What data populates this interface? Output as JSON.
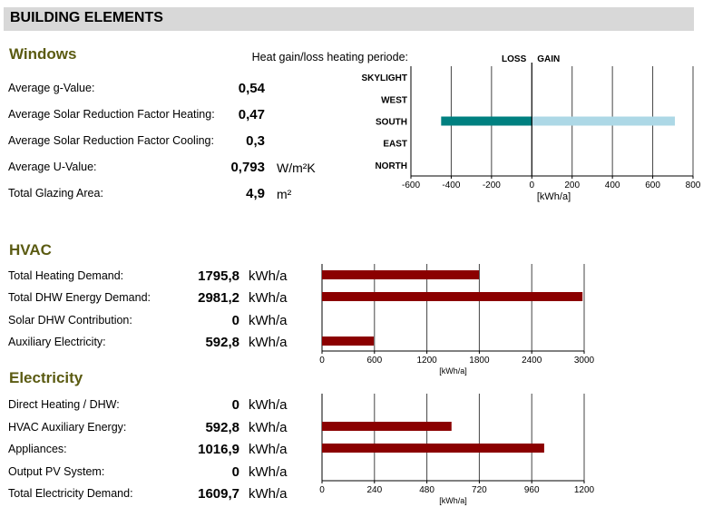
{
  "header": {
    "title": "BUILDING ELEMENTS"
  },
  "windows": {
    "title": "Windows",
    "rows": [
      {
        "label": "Average g-Value:",
        "value": "0,54",
        "unit": ""
      },
      {
        "label": "Average Solar Reduction Factor Heating:",
        "value": "0,47",
        "unit": ""
      },
      {
        "label": "Average Solar Reduction Factor Cooling:",
        "value": "0,3",
        "unit": ""
      },
      {
        "label": "Average U-Value:",
        "value": "0,793",
        "unit": "W/m²K"
      },
      {
        "label": "Total Glazing Area:",
        "value": "4,9",
        "unit": "m²"
      }
    ]
  },
  "hvac": {
    "title": "HVAC",
    "rows": [
      {
        "label": "Total Heating  Demand:",
        "value": "1795,8",
        "unit": "kWh/a"
      },
      {
        "label": "Total DHW Energy Demand:",
        "value": "2981,2",
        "unit": "kWh/a"
      },
      {
        "label": "Solar DHW Contribution:",
        "value": "0",
        "unit": "kWh/a"
      },
      {
        "label": "Auxiliary Electricity:",
        "value": "592,8",
        "unit": "kWh/a"
      }
    ]
  },
  "electricity": {
    "title": "Electricity",
    "rows": [
      {
        "label": "Direct Heating / DHW:",
        "value": "0",
        "unit": "kWh/a"
      },
      {
        "label": "HVAC Auxiliary Energy:",
        "value": "592,8",
        "unit": "kWh/a"
      },
      {
        "label": "Appliances:",
        "value": "1016,9",
        "unit": "kWh/a"
      },
      {
        "label": "Output PV System:",
        "value": "0",
        "unit": "kWh/a"
      },
      {
        "label": "Total Electricity Demand:",
        "value": "1609,7",
        "unit": "kWh/a"
      }
    ]
  },
  "chart_data": [
    {
      "type": "bar",
      "orientation": "horizontal",
      "title": "Heat gain/loss heating periode:",
      "legend_labels": [
        "LOSS",
        "GAIN"
      ],
      "categories": [
        "SKYLIGHT",
        "WEST",
        "SOUTH",
        "EAST",
        "NORTH"
      ],
      "series": [
        {
          "name": "LOSS",
          "values": [
            0,
            0,
            -450,
            0,
            0
          ],
          "color": "#008080"
        },
        {
          "name": "GAIN",
          "values": [
            0,
            0,
            710,
            0,
            0
          ],
          "color": "#add8e6"
        }
      ],
      "xlim": [
        -600,
        800
      ],
      "xticks": [
        "-600",
        "-400",
        "-200",
        "0",
        "200",
        "400",
        "600",
        "800"
      ],
      "xlabel": "[kWh/a]",
      "grid": true
    },
    {
      "type": "bar",
      "orientation": "horizontal",
      "categories": [
        "Total Heating  Demand:",
        "Total DHW Energy Demand:",
        "Solar DHW Contribution:",
        "Auxiliary Electricity:"
      ],
      "values": [
        1795.8,
        2981.2,
        0,
        592.8
      ],
      "color": "#8b0000",
      "xlim": [
        0,
        3000
      ],
      "xticks": [
        "0",
        "600",
        "1200",
        "1800",
        "2400",
        "3000"
      ],
      "xlabel": "[kWh/a]",
      "grid": true
    },
    {
      "type": "bar",
      "orientation": "horizontal",
      "categories": [
        "Direct Heating / DHW:",
        "HVAC Auxiliary Energy:",
        "Appliances:",
        "Output PV System:",
        "Total Electricity Demand:"
      ],
      "values": [
        0,
        592.8,
        1016.9,
        0,
        null
      ],
      "color": "#8b0000",
      "xlim": [
        0,
        1200
      ],
      "xticks": [
        "0",
        "240",
        "480",
        "720",
        "960",
        "1200"
      ],
      "xlabel": "[kWh/a]",
      "grid": true
    }
  ]
}
